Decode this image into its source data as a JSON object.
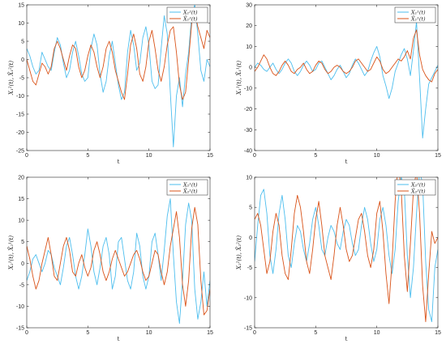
{
  "chart_data": [
    {
      "type": "line",
      "xlabel": "t",
      "ylabel": "X₁²(t), X̂₁²(t)",
      "xlim": [
        0,
        15
      ],
      "ylim": [
        -25,
        15
      ],
      "xticks": [
        "0",
        "5",
        "10",
        "15"
      ],
      "yticks": [
        "-25",
        "-20",
        "-15",
        "-10",
        "-5",
        "0",
        "5",
        "10",
        "15"
      ],
      "grid": false,
      "legend_position": "top-right",
      "series": [
        {
          "name": "X₁²(t)",
          "color": "#4DBEEE",
          "x": [
            0,
            0.25,
            0.5,
            0.75,
            1,
            1.25,
            1.5,
            1.75,
            2,
            2.25,
            2.5,
            2.75,
            3,
            3.25,
            3.5,
            3.75,
            4,
            4.25,
            4.5,
            4.75,
            5,
            5.25,
            5.5,
            5.75,
            6,
            6.25,
            6.5,
            6.75,
            7,
            7.25,
            7.5,
            7.75,
            8,
            8.25,
            8.5,
            8.75,
            9,
            9.25,
            9.5,
            9.75,
            10,
            10.25,
            10.5,
            10.75,
            11,
            11.25,
            11.5,
            11.75,
            12,
            12.25,
            12.5,
            12.75,
            13,
            13.25,
            13.5,
            13.75,
            14,
            14.25,
            14.5,
            14.75,
            15
          ],
          "values": [
            3,
            1,
            -2,
            -4,
            -3,
            2,
            0,
            -2,
            -3,
            2,
            6,
            4,
            -1,
            -5,
            -3,
            2,
            5,
            1,
            -4,
            -6,
            -5,
            3,
            7,
            4,
            -4,
            -9,
            -6,
            1,
            5,
            -1,
            -7,
            -11,
            -9,
            2,
            8,
            4,
            -3,
            -1,
            6,
            9,
            4,
            -6,
            -8,
            -7,
            3,
            12,
            7,
            -9,
            -24,
            -10,
            -5,
            -13,
            -4,
            2,
            12,
            15,
            7,
            -3,
            -6,
            0,
            -2
          ]
        },
        {
          "name": "X̂₁²(t)",
          "color": "#D95319",
          "x": [
            0,
            0.25,
            0.5,
            0.75,
            1,
            1.25,
            1.5,
            1.75,
            2,
            2.25,
            2.5,
            2.75,
            3,
            3.25,
            3.5,
            3.75,
            4,
            4.25,
            4.5,
            4.75,
            5,
            5.25,
            5.5,
            5.75,
            6,
            6.25,
            6.5,
            6.75,
            7,
            7.25,
            7.5,
            7.75,
            8,
            8.25,
            8.5,
            8.75,
            9,
            9.25,
            9.5,
            9.75,
            10,
            10.25,
            10.5,
            10.75,
            11,
            11.25,
            11.5,
            11.75,
            12,
            12.25,
            12.5,
            12.75,
            13,
            13.25,
            13.5,
            13.75,
            14,
            14.25,
            14.5,
            14.75,
            15
          ],
          "values": [
            0,
            -3,
            -6,
            -7,
            -4,
            -1,
            -2,
            -4,
            -2,
            3,
            5,
            3,
            0,
            -3,
            1,
            4,
            3,
            -2,
            -5,
            -3,
            1,
            4,
            2,
            -2,
            -5,
            -2,
            3,
            5,
            2,
            -3,
            -6,
            -9,
            -11,
            -4,
            4,
            7,
            3,
            -4,
            -6,
            -2,
            5,
            8,
            3,
            -3,
            -6,
            -2,
            4,
            8,
            9,
            2,
            -7,
            -11,
            -9,
            0,
            10,
            13,
            9,
            6,
            3,
            8,
            6
          ]
        }
      ]
    },
    {
      "type": "line",
      "xlabel": "t",
      "ylabel": "X₁¹(t), X̂₁¹(t)",
      "xlim": [
        0,
        15
      ],
      "ylim": [
        -40,
        30
      ],
      "xticks": [
        "0",
        "5",
        "10",
        "15"
      ],
      "yticks": [
        "-40",
        "-30",
        "-20",
        "-10",
        "0",
        "10",
        "20",
        "30"
      ],
      "grid": false,
      "legend_position": "top-right",
      "series": [
        {
          "name": "X₁¹(t)",
          "color": "#4DBEEE",
          "x": [
            0,
            0.25,
            0.5,
            0.75,
            1,
            1.25,
            1.5,
            1.75,
            2,
            2.25,
            2.5,
            2.75,
            3,
            3.25,
            3.5,
            3.75,
            4,
            4.25,
            4.5,
            4.75,
            5,
            5.25,
            5.5,
            5.75,
            6,
            6.25,
            6.5,
            6.75,
            7,
            7.25,
            7.5,
            7.75,
            8,
            8.25,
            8.5,
            8.75,
            9,
            9.25,
            9.5,
            9.75,
            10,
            10.25,
            10.5,
            10.75,
            11,
            11.25,
            11.5,
            11.75,
            12,
            12.25,
            12.5,
            12.75,
            13,
            13.25,
            13.5,
            13.75,
            14,
            14.25,
            14.5,
            14.75,
            15
          ],
          "values": [
            0,
            2,
            1,
            -1,
            -2,
            0,
            2,
            -1,
            -3,
            -1,
            2,
            4,
            2,
            -2,
            -4,
            -2,
            1,
            3,
            1,
            -2,
            -1,
            2,
            3,
            0,
            -3,
            -6,
            -4,
            -1,
            1,
            -2,
            -5,
            -3,
            1,
            4,
            2,
            -1,
            -4,
            -2,
            3,
            7,
            10,
            5,
            -4,
            -9,
            -15,
            -10,
            -2,
            2,
            6,
            9,
            4,
            -4,
            8,
            22,
            -5,
            -34,
            -20,
            -8,
            -5,
            -2,
            1
          ]
        },
        {
          "name": "X̂₁¹(t)",
          "color": "#D95319",
          "x": [
            0,
            0.25,
            0.5,
            0.75,
            1,
            1.25,
            1.5,
            1.75,
            2,
            2.25,
            2.5,
            2.75,
            3,
            3.25,
            3.5,
            3.75,
            4,
            4.25,
            4.5,
            4.75,
            5,
            5.25,
            5.5,
            5.75,
            6,
            6.25,
            6.5,
            6.75,
            7,
            7.25,
            7.5,
            7.75,
            8,
            8.25,
            8.5,
            8.75,
            9,
            9.25,
            9.5,
            9.75,
            10,
            10.25,
            10.5,
            10.75,
            11,
            11.25,
            11.5,
            11.75,
            12,
            12.25,
            12.5,
            12.75,
            13,
            13.25,
            13.5,
            13.75,
            14,
            14.25,
            14.5,
            14.75,
            15
          ],
          "values": [
            -2,
            0,
            3,
            6,
            4,
            0,
            -3,
            -4,
            -2,
            1,
            3,
            1,
            -2,
            -3,
            -1,
            0,
            2,
            -1,
            -3,
            -2,
            1,
            3,
            2,
            -1,
            -3,
            -2,
            0,
            1,
            0,
            -2,
            -3,
            -2,
            0,
            3,
            4,
            2,
            0,
            -2,
            -1,
            2,
            5,
            3,
            -1,
            -3,
            -2,
            0,
            2,
            4,
            3,
            5,
            8,
            4,
            14,
            18,
            6,
            -1,
            -4,
            -6,
            -7,
            -3,
            -1
          ]
        }
      ]
    },
    {
      "type": "line",
      "xlabel": "t",
      "ylabel": "X₂¹(t), X̂₂¹(t)",
      "xlim": [
        0,
        15
      ],
      "ylim": [
        -15,
        20
      ],
      "xticks": [
        "0",
        "5",
        "10",
        "15"
      ],
      "yticks": [
        "-15",
        "-10",
        "-5",
        "0",
        "5",
        "10",
        "15",
        "20"
      ],
      "grid": false,
      "legend_position": "top-right",
      "series": [
        {
          "name": "X₂¹(t)",
          "color": "#4DBEEE",
          "x": [
            0,
            0.25,
            0.5,
            0.75,
            1,
            1.25,
            1.5,
            1.75,
            2,
            2.25,
            2.5,
            2.75,
            3,
            3.25,
            3.5,
            3.75,
            4,
            4.25,
            4.5,
            4.75,
            5,
            5.25,
            5.5,
            5.75,
            6,
            6.25,
            6.5,
            6.75,
            7,
            7.25,
            7.5,
            7.75,
            8,
            8.25,
            8.5,
            8.75,
            9,
            9.25,
            9.5,
            9.75,
            10,
            10.25,
            10.5,
            10.75,
            11,
            11.25,
            11.5,
            11.75,
            12,
            12.25,
            12.5,
            12.75,
            13,
            13.25,
            13.5,
            13.75,
            14,
            14.25,
            14.5,
            14.75,
            15
          ],
          "values": [
            -4,
            -2,
            1,
            2,
            0,
            -2,
            0,
            3,
            2,
            -1,
            -3,
            -5,
            -1,
            4,
            6,
            2,
            -3,
            -6,
            -3,
            2,
            8,
            4,
            -2,
            -5,
            -1,
            4,
            6,
            2,
            -6,
            -3,
            5,
            6,
            1,
            -4,
            -6,
            -2,
            7,
            4,
            -3,
            -6,
            -3,
            5,
            7,
            2,
            -4,
            3,
            11,
            15,
            2,
            -9,
            -14,
            -4,
            9,
            14,
            10,
            -6,
            -13,
            -9,
            -2,
            -10,
            -4
          ]
        },
        {
          "name": "X̂₂¹(t)",
          "color": "#D95319",
          "x": [
            0,
            0.25,
            0.5,
            0.75,
            1,
            1.25,
            1.5,
            1.75,
            2,
            2.25,
            2.5,
            2.75,
            3,
            3.25,
            3.5,
            3.75,
            4,
            4.25,
            4.5,
            4.75,
            5,
            5.25,
            5.5,
            5.75,
            6,
            6.25,
            6.5,
            6.75,
            7,
            7.25,
            7.5,
            7.75,
            8,
            8.25,
            8.5,
            8.75,
            9,
            9.25,
            9.5,
            9.75,
            10,
            10.25,
            10.5,
            10.75,
            11,
            11.25,
            11.5,
            11.75,
            12,
            12.25,
            12.5,
            12.75,
            13,
            13.25,
            13.5,
            13.75,
            14,
            14.25,
            14.5,
            14.75,
            15
          ],
          "values": [
            4,
            1,
            -3,
            -6,
            -4,
            0,
            3,
            6,
            2,
            -3,
            -4,
            0,
            4,
            6,
            3,
            -2,
            -3,
            0,
            2,
            -1,
            -3,
            -1,
            3,
            5,
            2,
            -2,
            -4,
            -2,
            1,
            3,
            1,
            -1,
            -3,
            -2,
            0,
            2,
            3,
            1,
            -2,
            -4,
            -3,
            0,
            3,
            2,
            -2,
            -5,
            -2,
            4,
            8,
            12,
            6,
            -5,
            -10,
            -4,
            8,
            13,
            9,
            -4,
            -12,
            -11,
            -6
          ]
        }
      ]
    },
    {
      "type": "line",
      "xlabel": "t",
      "ylabel": "X₂²(t), X̂₂²(t)",
      "xlim": [
        0,
        15
      ],
      "ylim": [
        -15,
        10
      ],
      "xticks": [
        "0",
        "5",
        "10",
        "15"
      ],
      "yticks": [
        "-15",
        "-10",
        "-5",
        "0",
        "5",
        "10"
      ],
      "grid": false,
      "legend_position": "top-right",
      "series": [
        {
          "name": "X₂²(t)",
          "color": "#4DBEEE",
          "x": [
            0,
            0.25,
            0.5,
            0.75,
            1,
            1.25,
            1.5,
            1.75,
            2,
            2.25,
            2.5,
            2.75,
            3,
            3.25,
            3.5,
            3.75,
            4,
            4.25,
            4.5,
            4.75,
            5,
            5.25,
            5.5,
            5.75,
            6,
            6.25,
            6.5,
            6.75,
            7,
            7.25,
            7.5,
            7.75,
            8,
            8.25,
            8.5,
            8.75,
            9,
            9.25,
            9.5,
            9.75,
            10,
            10.25,
            10.5,
            10.75,
            11,
            11.25,
            11.5,
            11.75,
            12,
            12.25,
            12.5,
            12.75,
            13,
            13.25,
            13.5,
            13.75,
            14,
            14.25,
            14.5,
            14.75,
            15
          ],
          "values": [
            -4,
            2,
            7,
            8,
            4,
            -3,
            -6,
            -2,
            4,
            7,
            3,
            -3,
            -5,
            -1,
            2,
            1,
            -2,
            -4,
            -1,
            3,
            5,
            2,
            -2,
            -3,
            0,
            2,
            1,
            -1,
            -2,
            1,
            3,
            2,
            -1,
            -3,
            -2,
            2,
            5,
            3,
            -1,
            -4,
            -2,
            3,
            5,
            2,
            -3,
            -6,
            -2,
            6,
            10,
            8,
            -3,
            -10,
            -5,
            4,
            11,
            9,
            -4,
            -12,
            -14,
            -5,
            -2
          ]
        },
        {
          "name": "X̂₂²(t)",
          "color": "#D95319",
          "x": [
            0,
            0.25,
            0.5,
            0.75,
            1,
            1.25,
            1.5,
            1.75,
            2,
            2.25,
            2.5,
            2.75,
            3,
            3.25,
            3.5,
            3.75,
            4,
            4.25,
            4.5,
            4.75,
            5,
            5.25,
            5.5,
            5.75,
            6,
            6.25,
            6.5,
            6.75,
            7,
            7.25,
            7.5,
            7.75,
            8,
            8.25,
            8.5,
            8.75,
            9,
            9.25,
            9.5,
            9.75,
            10,
            10.25,
            10.5,
            10.75,
            11,
            11.25,
            11.5,
            11.75,
            12,
            12.25,
            12.5,
            12.75,
            13,
            13.25,
            13.5,
            13.75,
            14,
            14.25,
            14.5,
            14.75,
            15
          ],
          "values": [
            3,
            4,
            2,
            -2,
            -6,
            -4,
            1,
            4,
            2,
            -3,
            -6,
            -7,
            -2,
            4,
            7,
            5,
            1,
            -4,
            -6,
            -2,
            3,
            6,
            2,
            -3,
            -5,
            -7,
            -3,
            2,
            5,
            2,
            -2,
            -4,
            -3,
            0,
            3,
            4,
            1,
            -3,
            -5,
            -2,
            4,
            6,
            1,
            -6,
            -11,
            -4,
            6,
            12,
            8,
            -3,
            -9,
            -1,
            8,
            11,
            4,
            -8,
            -14,
            -6,
            1,
            -1,
            0
          ]
        }
      ]
    }
  ]
}
